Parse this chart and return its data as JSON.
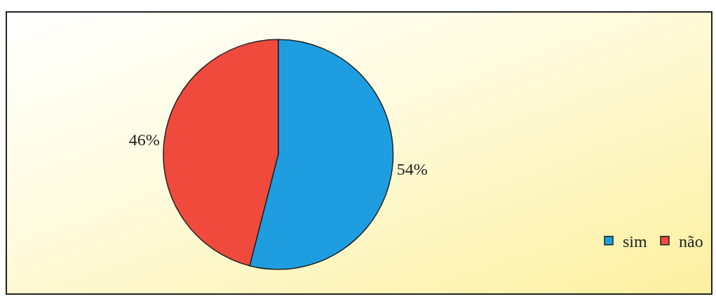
{
  "chart_data": {
    "type": "pie",
    "categories": [
      "sim",
      "não"
    ],
    "values": [
      54,
      46
    ],
    "colors": [
      "#1e9ee0",
      "#f04a3c"
    ],
    "value_labels": [
      "54%",
      "46%"
    ],
    "legend": "bottom right"
  }
}
